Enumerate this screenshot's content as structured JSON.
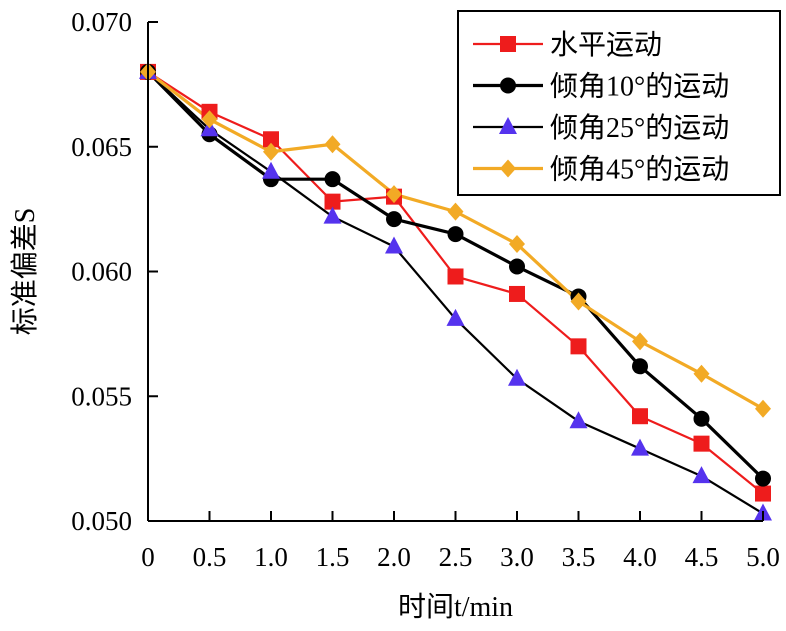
{
  "chart_data": {
    "type": "line",
    "x": [
      0,
      0.5,
      1.0,
      1.5,
      2.0,
      2.5,
      3.0,
      3.5,
      4.0,
      4.5,
      5.0
    ],
    "x_tick_labels": [
      "0",
      "0.5",
      "1.0",
      "1.5",
      "2.0",
      "2.5",
      "3.0",
      "3.5",
      "4.0",
      "4.5",
      "5.0"
    ],
    "y_tick_labels": [
      "0.050",
      "0.055",
      "0.060",
      "0.065",
      "0.070"
    ],
    "y_ticks": [
      0.05,
      0.055,
      0.06,
      0.065,
      0.07
    ],
    "xlim": [
      0,
      5.0
    ],
    "ylim": [
      0.05,
      0.07
    ],
    "xlabel": "时间t/min",
    "ylabel": "标准偏差S",
    "grid": false,
    "legend_position": "top-right",
    "series": [
      {
        "name": "水平运动",
        "color": "#ee1c1c",
        "marker": "square",
        "values": [
          0.068,
          0.0664,
          0.0653,
          0.0628,
          0.063,
          0.0598,
          0.0591,
          0.057,
          0.0542,
          0.0531,
          0.0511
        ]
      },
      {
        "name": "倾角10°的运动",
        "color": "#000000",
        "marker": "circle",
        "values": [
          0.068,
          0.0655,
          0.0637,
          0.0637,
          0.0621,
          0.0615,
          0.0602,
          0.059,
          0.0562,
          0.0541,
          0.0517
        ]
      },
      {
        "name": "倾角25°的运动",
        "color": "#5533ee",
        "line_color": "#000000",
        "marker": "triangle",
        "values": [
          0.068,
          0.0657,
          0.064,
          0.0622,
          0.061,
          0.0581,
          0.0557,
          0.054,
          0.0529,
          0.0518,
          0.0503
        ]
      },
      {
        "name": "倾角45°的运动",
        "color": "#f2aa25",
        "marker": "diamond",
        "values": [
          0.068,
          0.0661,
          0.0648,
          0.0651,
          0.0631,
          0.0624,
          0.0611,
          0.0588,
          0.0572,
          0.0559,
          0.0545
        ]
      }
    ]
  }
}
